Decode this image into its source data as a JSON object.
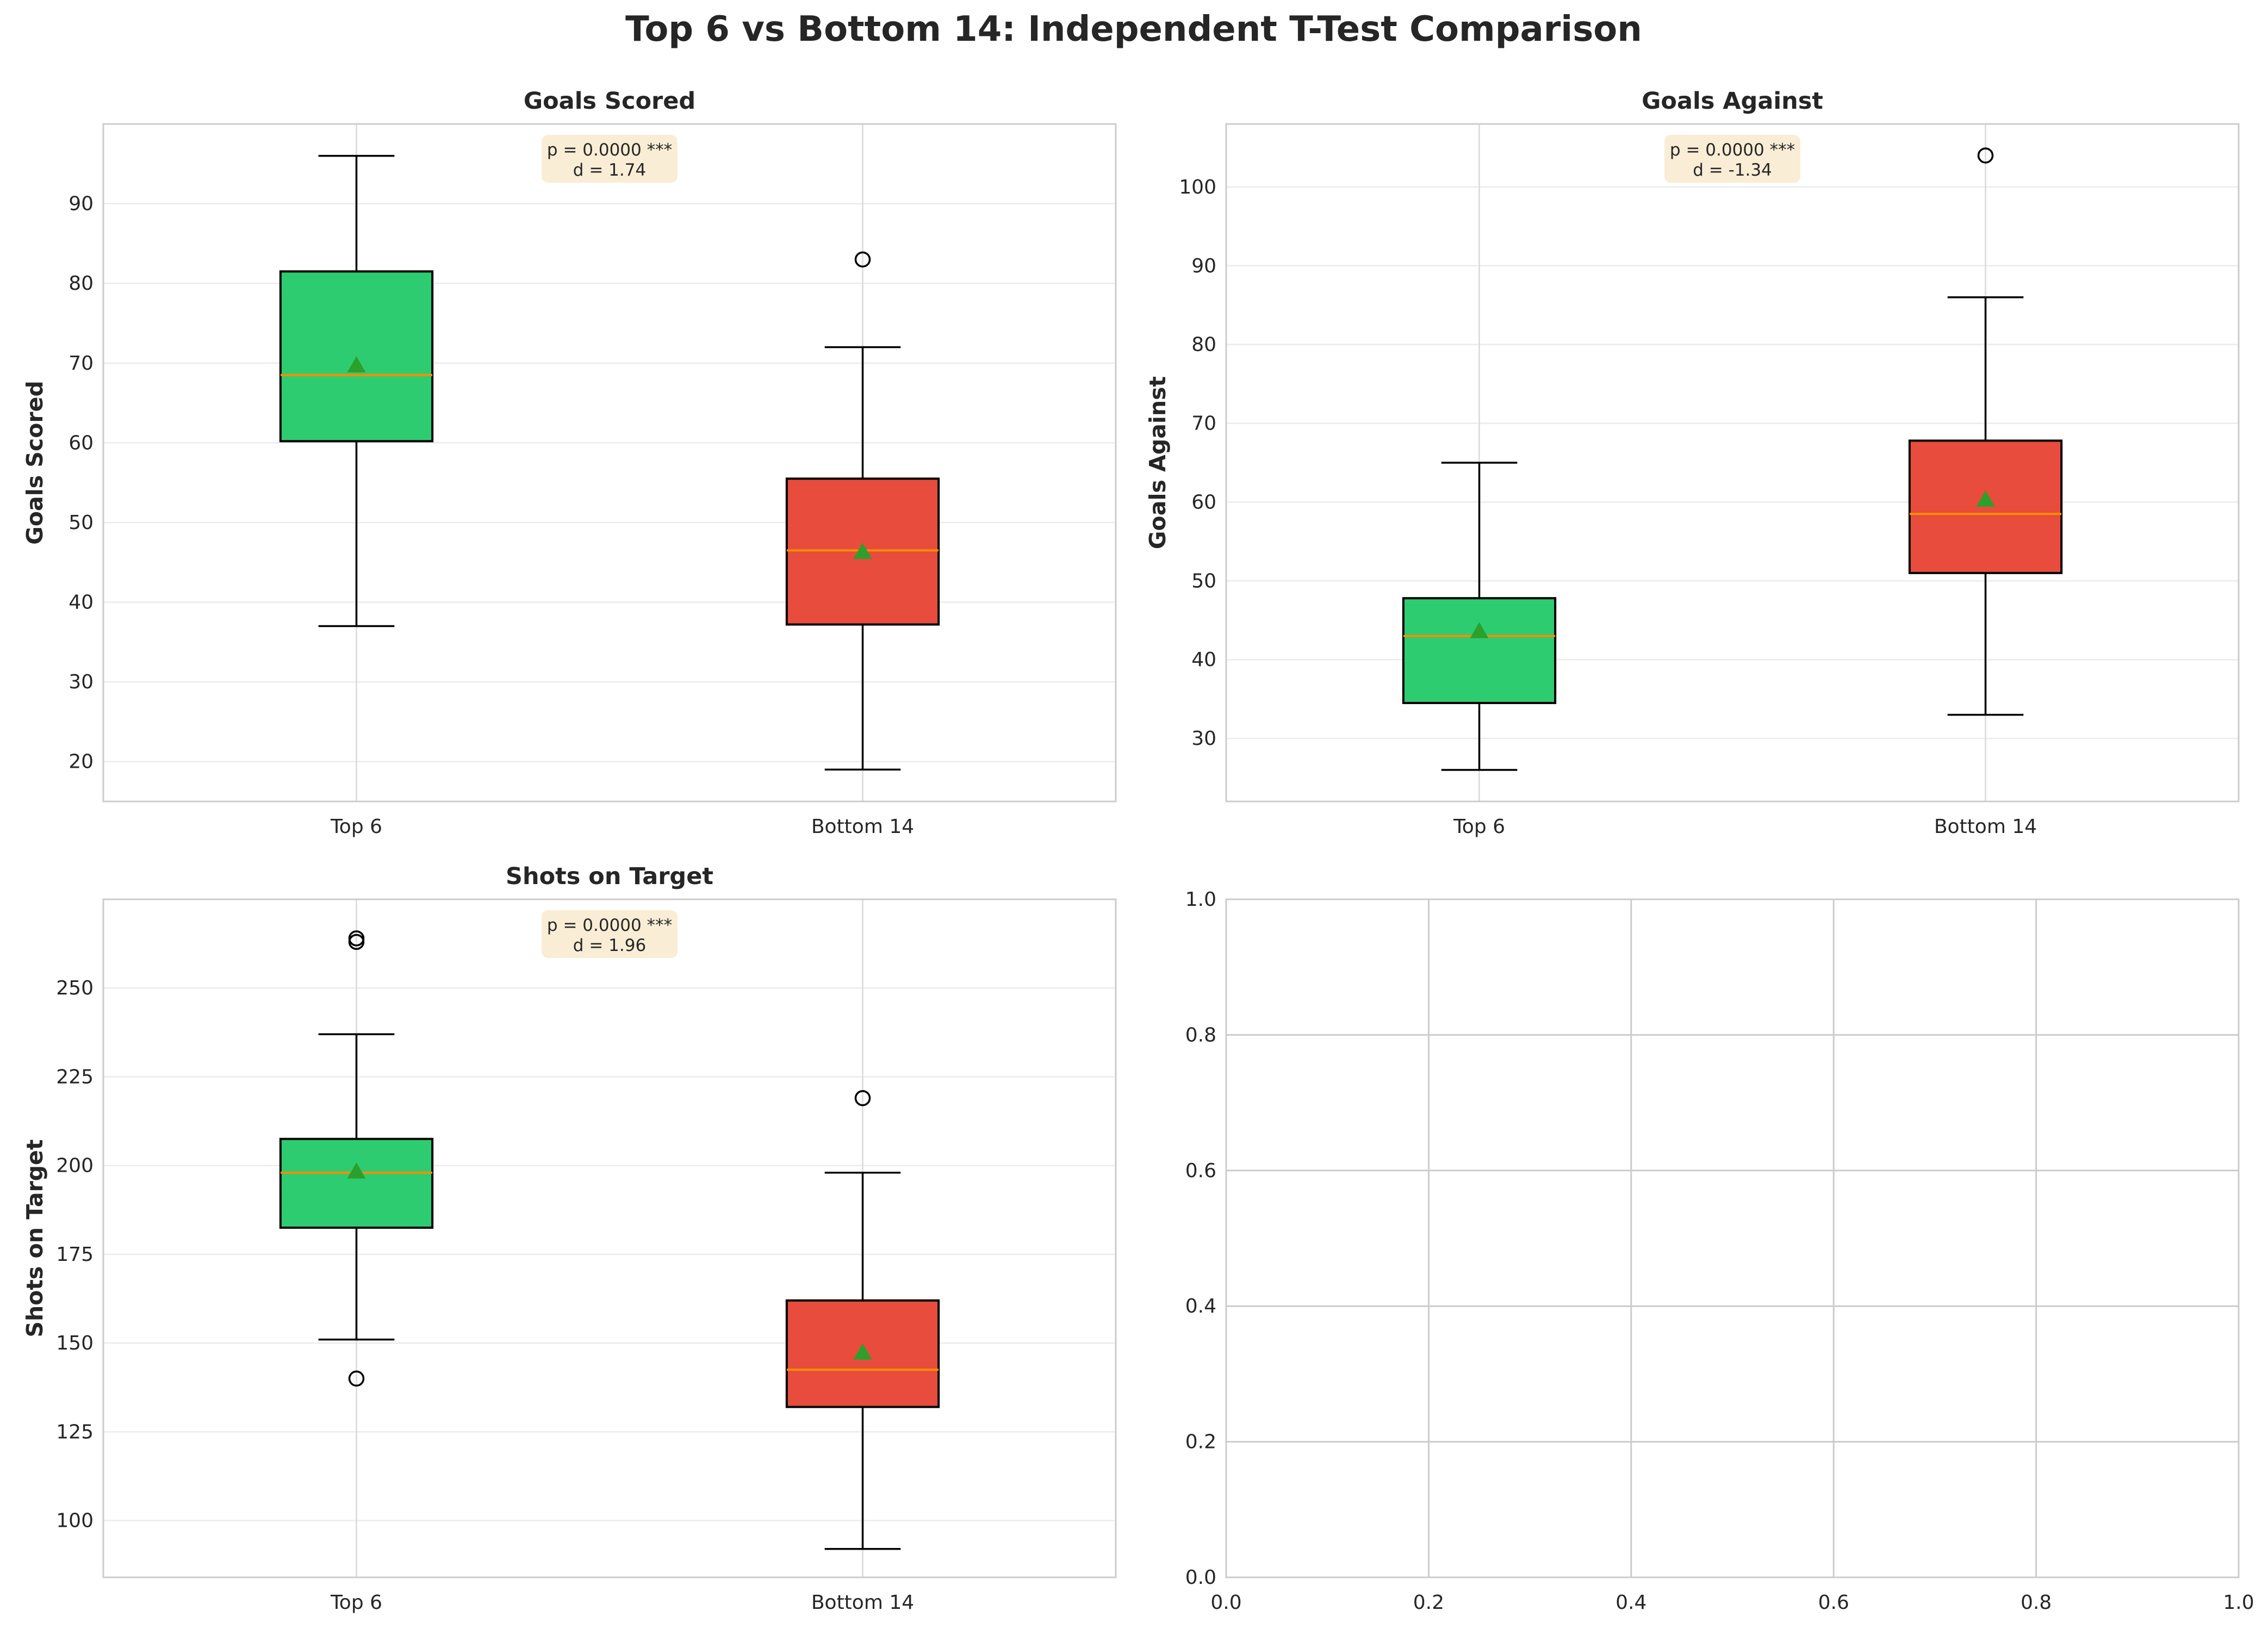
{
  "title": "Top 6 vs Bottom 14: Independent T-Test Comparison",
  "colors": {
    "top": "#2ecc71",
    "bottom": "#e74c3c",
    "median": "#ff8c00",
    "mean": "#2ca02c",
    "annot_bg": "#f5deb3"
  },
  "chart_data": [
    {
      "type": "box",
      "title": "Goals Scored",
      "ylabel": "Goals Scored",
      "categories": [
        "Top 6",
        "Bottom 14"
      ],
      "ylim": [
        15,
        100
      ],
      "yticks": [
        20,
        30,
        40,
        50,
        60,
        70,
        80,
        90
      ],
      "annotation": [
        "p = 0.0000 ***",
        "d = 1.74"
      ],
      "boxes": [
        {
          "label": "Top 6",
          "q1": 60.2,
          "median": 68.5,
          "q3": 81.5,
          "whisker_low": 37,
          "whisker_high": 96,
          "mean": 69.7,
          "outliers": []
        },
        {
          "label": "Bottom 14",
          "q1": 37.2,
          "median": 46.5,
          "q3": 55.5,
          "whisker_low": 19,
          "whisker_high": 72,
          "mean": 46.3,
          "outliers": [
            83
          ]
        }
      ]
    },
    {
      "type": "box",
      "title": "Goals Against",
      "ylabel": "Goals Against",
      "categories": [
        "Top 6",
        "Bottom 14"
      ],
      "ylim": [
        22,
        108
      ],
      "yticks": [
        30,
        40,
        50,
        60,
        70,
        80,
        90,
        100
      ],
      "annotation": [
        "p = 0.0000 ***",
        "d = -1.34"
      ],
      "boxes": [
        {
          "label": "Top 6",
          "q1": 34.5,
          "median": 43,
          "q3": 47.8,
          "whisker_low": 26,
          "whisker_high": 65,
          "mean": 43.6,
          "outliers": []
        },
        {
          "label": "Bottom 14",
          "q1": 51,
          "median": 58.5,
          "q3": 67.8,
          "whisker_low": 33,
          "whisker_high": 86,
          "mean": 60.3,
          "outliers": [
            104
          ]
        }
      ]
    },
    {
      "type": "box",
      "title": "Shots on Target",
      "ylabel": "Shots on Target",
      "categories": [
        "Top 6",
        "Bottom 14"
      ],
      "ylim": [
        84,
        275
      ],
      "yticks": [
        100,
        125,
        150,
        175,
        200,
        225,
        250
      ],
      "annotation": [
        "p = 0.0000 ***",
        "d = 1.96"
      ],
      "boxes": [
        {
          "label": "Top 6",
          "q1": 182.5,
          "median": 198,
          "q3": 207.5,
          "whisker_low": 151,
          "whisker_high": 237,
          "mean": 198.3,
          "outliers": [
            264,
            263,
            140
          ]
        },
        {
          "label": "Bottom 14",
          "q1": 132,
          "median": 142.5,
          "q3": 162,
          "whisker_low": 92,
          "whisker_high": 198,
          "mean": 147.3,
          "outliers": [
            219
          ]
        }
      ]
    },
    {
      "type": "empty",
      "xlim": [
        0,
        1
      ],
      "ylim": [
        0,
        1
      ],
      "xticks": [
        "0.0",
        "0.2",
        "0.4",
        "0.6",
        "0.8",
        "1.0"
      ],
      "yticks": [
        "0.0",
        "0.2",
        "0.4",
        "0.6",
        "0.8",
        "1.0"
      ]
    }
  ]
}
